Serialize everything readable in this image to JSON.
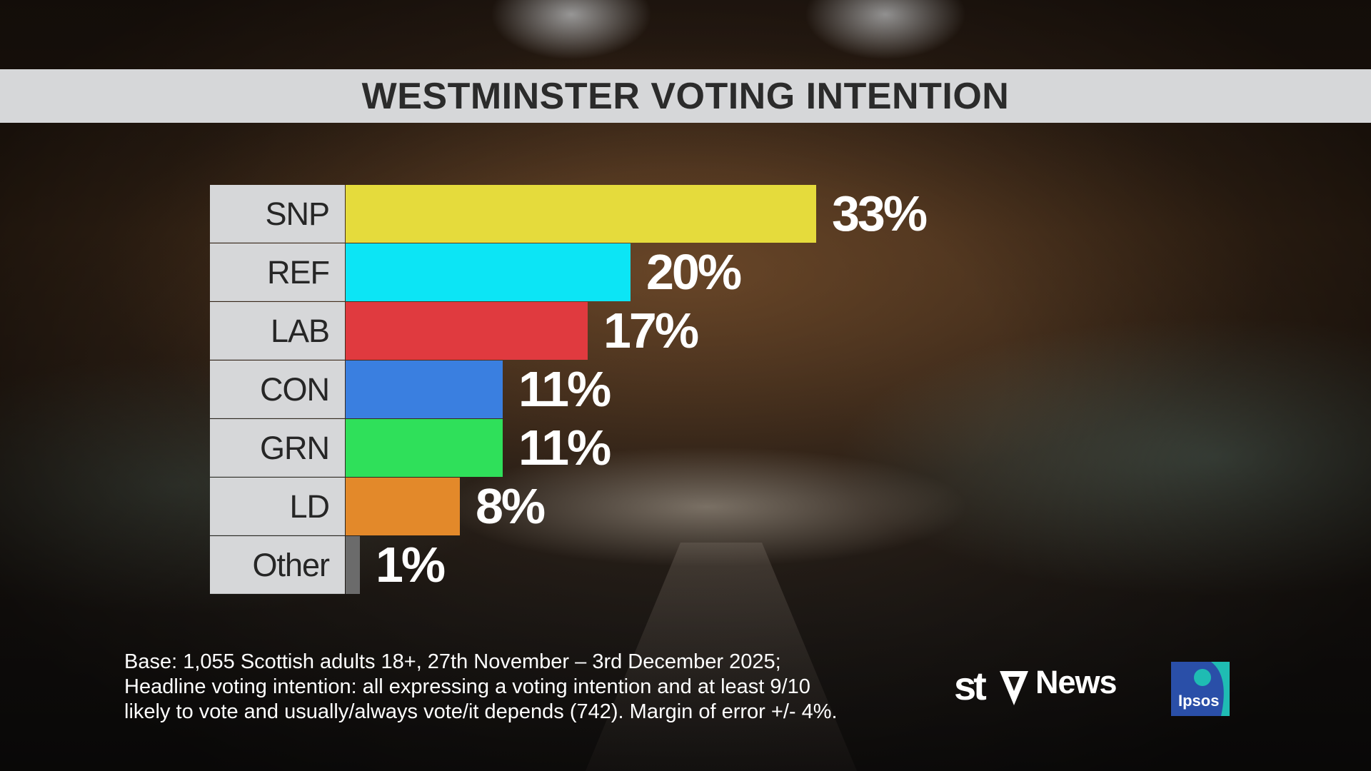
{
  "title": "WESTMINSTER VOTING INTENTION",
  "chart_data": {
    "type": "bar",
    "orientation": "horizontal",
    "title": "WESTMINSTER VOTING INTENTION",
    "categories": [
      "SNP",
      "REF",
      "LAB",
      "CON",
      "GRN",
      "LD",
      "Other"
    ],
    "values": [
      33,
      20,
      17,
      11,
      11,
      8,
      1
    ],
    "value_labels": [
      "33%",
      "20%",
      "17%",
      "11%",
      "11%",
      "8%",
      "1%"
    ],
    "colors": [
      "#e5db3c",
      "#0ce5f5",
      "#e03a3f",
      "#3a7fe0",
      "#2fe05a",
      "#e3892a",
      "#6b6b6b"
    ],
    "xlim": [
      0,
      33
    ],
    "grid": false,
    "legend": "none"
  },
  "footnote": {
    "line1": "Base: 1,055 Scottish adults 18+, 27th November – 3rd December 2025;",
    "line2": "Headline voting intention: all expressing a voting intention and at least 9/10",
    "line3": "likely to vote and usually/always vote/it depends (742). Margin of error +/- 4%."
  },
  "branding": {
    "stv": "stv",
    "news": "News",
    "ipsos": "Ipsos",
    "ipsos_color": "#2a4fa8",
    "ipsos_accent": "#1fbcb3"
  }
}
